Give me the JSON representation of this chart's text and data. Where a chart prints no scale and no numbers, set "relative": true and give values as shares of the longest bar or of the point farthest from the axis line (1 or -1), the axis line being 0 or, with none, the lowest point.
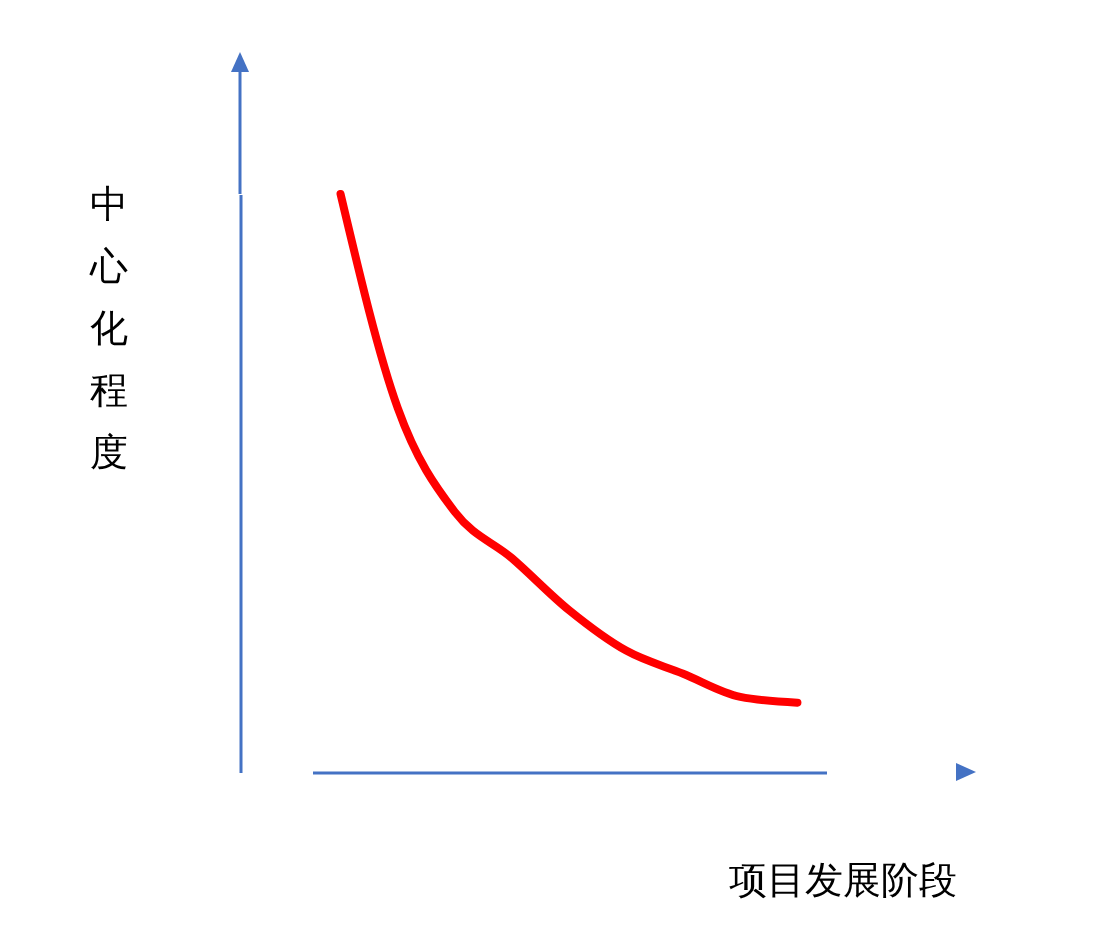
{
  "chart_data": {
    "type": "line",
    "relative": true,
    "xlabel": "项目发展阶段",
    "ylabel": "中心化程度",
    "categories": [
      null,
      null,
      null,
      null,
      null,
      null,
      null,
      null,
      null
    ],
    "series": [
      {
        "color": "#ff0000",
        "values": [
          1,
          0.63,
          0.45,
          0.37,
          0.28,
          0.21,
          0.17,
          0.13,
          0.12
        ]
      }
    ],
    "grid": false,
    "legend": false,
    "marker": "none",
    "line_style": "solid",
    "tick_labels": false
  }
}
